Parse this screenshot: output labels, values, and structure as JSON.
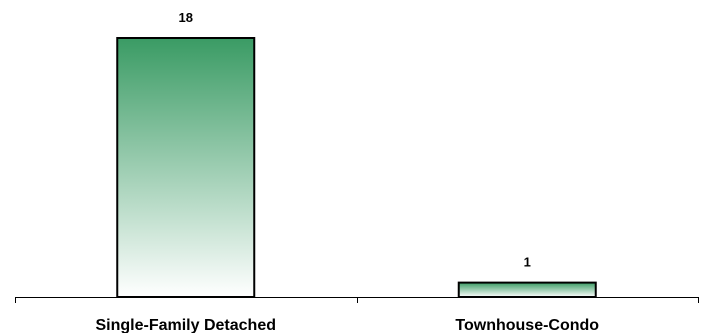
{
  "chart_data": {
    "type": "bar",
    "categories": [
      "Single-Family Detached",
      "Townhouse-Condo"
    ],
    "values": [
      18,
      1
    ],
    "title": "",
    "xlabel": "",
    "ylabel": "",
    "ylim": [
      0,
      18
    ],
    "grid": false,
    "legend": "none",
    "data_labels": [
      "18",
      "1"
    ],
    "colors": {
      "bar_top": "#3a9b64",
      "bar_bottom": "#ffffff",
      "bar_stroke": "#000000",
      "axis": "#000000"
    }
  }
}
